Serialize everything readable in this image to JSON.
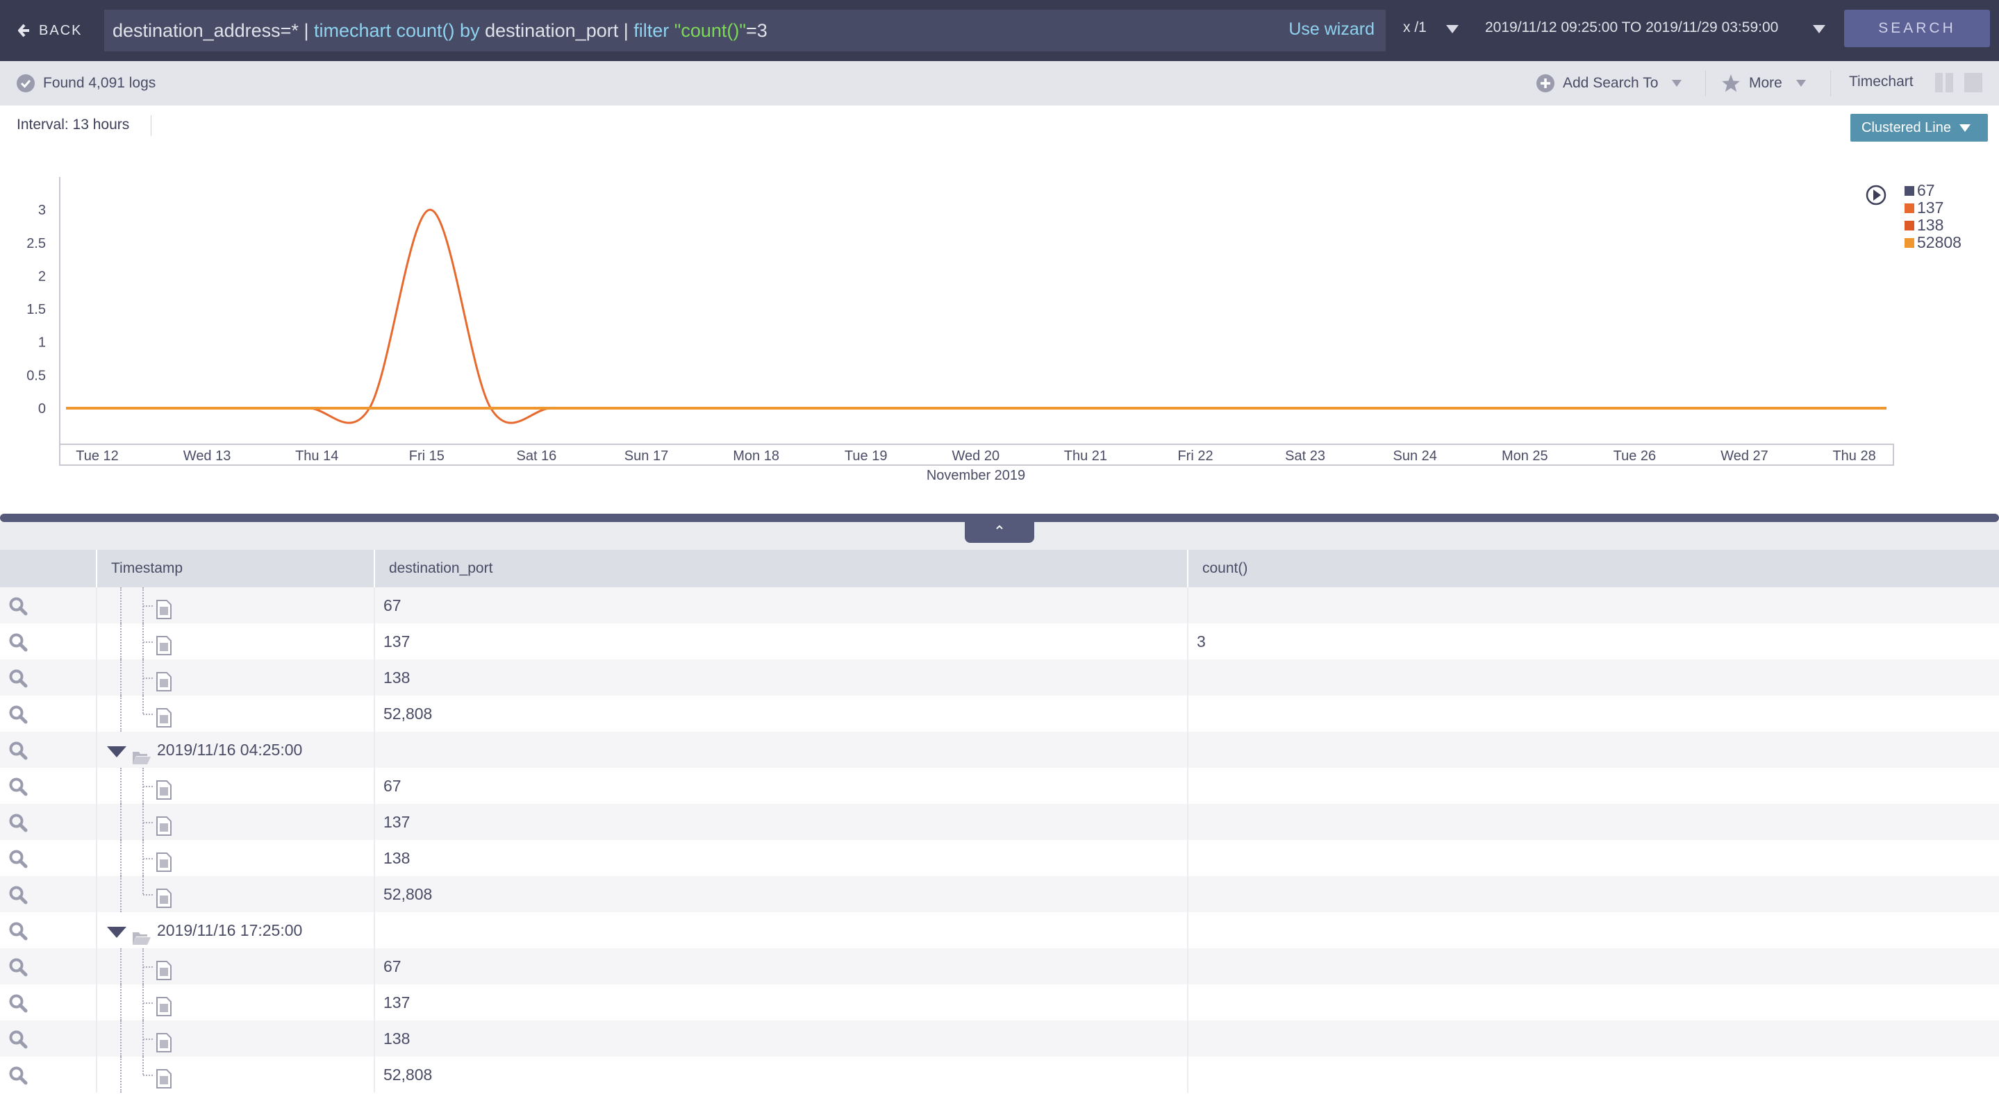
{
  "topbar": {
    "back_label": "BACK",
    "query": [
      {
        "text": "destination_address=* | ",
        "kind": "plain"
      },
      {
        "text": "timechart count()",
        "kind": "kw"
      },
      {
        "text": " by ",
        "kind": "kw"
      },
      {
        "text": "destination_port | ",
        "kind": "plain"
      },
      {
        "text": "filter ",
        "kind": "kw"
      },
      {
        "text": "\"count()\"",
        "kind": "str"
      },
      {
        "text": "=3",
        "kind": "plain"
      }
    ],
    "use_wizard": "Use wizard",
    "multiplier": "x /1",
    "date_range": "2019/11/12 09:25:00 TO 2019/11/29 03:59:00",
    "search_label": "SEARCH"
  },
  "toolbar": {
    "found": "Found 4,091 logs",
    "add_search_to": "Add Search To",
    "more": "More",
    "timechart": "Timechart"
  },
  "interval": "Interval: 13 hours",
  "chart_type_button": "Clustered Line",
  "colors": {
    "topbar": "#393b52",
    "accent": "#5592ad",
    "search": "#5b6194"
  },
  "chart_data": {
    "type": "line",
    "xlabel": "November 2019",
    "ylabel": "",
    "ylim": [
      -0.2,
      3
    ],
    "yticks": [
      "3",
      "2.5",
      "2",
      "1.5",
      "1",
      "0.5",
      "0"
    ],
    "xtick_labels": [
      "Tue 12",
      "Wed 13",
      "Thu 14",
      "Fri 15",
      "Sat 16",
      "Sun 17",
      "Mon 18",
      "Tue 19",
      "Wed 20",
      "Thu 21",
      "Fri 22",
      "Sat 23",
      "Sun 24",
      "Mon 25",
      "Tue 26",
      "Wed 27",
      "Thu 28"
    ],
    "x": [
      "2019/11/12 09:25",
      "2019/11/12 22:25",
      "2019/11/13 11:25",
      "2019/11/14 00:25",
      "2019/11/14 13:25",
      "2019/11/15 02:25",
      "2019/11/15 15:25",
      "2019/11/16 04:25",
      "2019/11/16 17:25",
      "2019/11/17 06:25",
      "2019/11/17 19:25",
      "2019/11/18 08:25",
      "2019/11/18 21:25",
      "2019/11/19 10:25",
      "2019/11/19 23:25",
      "2019/11/20 12:25",
      "2019/11/21 01:25",
      "2019/11/21 14:25",
      "2019/11/22 03:25",
      "2019/11/22 16:25",
      "2019/11/23 05:25",
      "2019/11/23 18:25",
      "2019/11/24 07:25",
      "2019/11/24 20:25",
      "2019/11/25 09:25",
      "2019/11/25 22:25",
      "2019/11/26 11:25",
      "2019/11/27 00:25",
      "2019/11/27 13:25",
      "2019/11/28 02:25",
      "2019/11/28 15:25"
    ],
    "series": [
      {
        "name": "67",
        "color": "#4b4e6d",
        "values": [
          0,
          0,
          0,
          0,
          0,
          0,
          0,
          0,
          0,
          0,
          0,
          0,
          0,
          0,
          0,
          0,
          0,
          0,
          0,
          0,
          0,
          0,
          0,
          0,
          0,
          0,
          0,
          0,
          0,
          0,
          0
        ]
      },
      {
        "name": "137",
        "color": "#e8692e",
        "values": [
          0,
          0,
          0,
          0,
          0,
          0,
          3,
          0,
          0,
          0,
          0,
          0,
          0,
          0,
          0,
          0,
          0,
          0,
          0,
          0,
          0,
          0,
          0,
          0,
          0,
          0,
          0,
          0,
          0,
          0,
          0
        ]
      },
      {
        "name": "138",
        "color": "#dd5a26",
        "values": [
          0,
          0,
          0,
          0,
          0,
          0,
          0,
          0,
          0,
          0,
          0,
          0,
          0,
          0,
          0,
          0,
          0,
          0,
          0,
          0,
          0,
          0,
          0,
          0,
          0,
          0,
          0,
          0,
          0,
          0,
          0
        ]
      },
      {
        "name": "52808",
        "color": "#f0962e",
        "values": [
          0,
          0,
          0,
          0,
          0,
          0,
          0,
          0,
          0,
          0,
          0,
          0,
          0,
          0,
          0,
          0,
          0,
          0,
          0,
          0,
          0,
          0,
          0,
          0,
          0,
          0,
          0,
          0,
          0,
          0,
          0
        ]
      }
    ],
    "grid": false,
    "legend": "top-right"
  },
  "table": {
    "headers": [
      "Timestamp",
      "destination_port",
      "count()"
    ],
    "rows": [
      {
        "type": "child",
        "port": "67",
        "count": "",
        "last": false
      },
      {
        "type": "child",
        "port": "137",
        "count": "3",
        "last": false
      },
      {
        "type": "child",
        "port": "138",
        "count": "",
        "last": false
      },
      {
        "type": "child",
        "port": "52,808",
        "count": "",
        "last": true
      },
      {
        "type": "group",
        "timestamp": "2019/11/16 04:25:00"
      },
      {
        "type": "child",
        "port": "67",
        "count": "",
        "last": false
      },
      {
        "type": "child",
        "port": "137",
        "count": "",
        "last": false
      },
      {
        "type": "child",
        "port": "138",
        "count": "",
        "last": false
      },
      {
        "type": "child",
        "port": "52,808",
        "count": "",
        "last": true
      },
      {
        "type": "group",
        "timestamp": "2019/11/16 17:25:00"
      },
      {
        "type": "child",
        "port": "67",
        "count": "",
        "last": false
      },
      {
        "type": "child",
        "port": "137",
        "count": "",
        "last": false
      },
      {
        "type": "child",
        "port": "138",
        "count": "",
        "last": false
      },
      {
        "type": "child",
        "port": "52,808",
        "count": "",
        "last": true
      }
    ]
  }
}
